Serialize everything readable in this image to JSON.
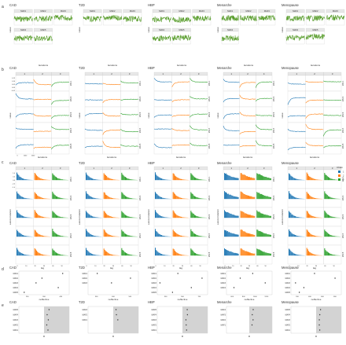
{
  "chart_data": {
    "type": "multi-panel",
    "panel_letters": [
      "a",
      "b",
      "c",
      "d",
      "e"
    ],
    "groups": [
      "CAD",
      "T2D",
      "HBP",
      "Menarche",
      "Menopause"
    ],
    "maf_bins": [
      "MAF1",
      "MAF2",
      "MAF3",
      "MAF4",
      "MAF5"
    ],
    "maf_count_per_group": [
      5,
      3,
      5,
      4,
      5
    ],
    "chain_labels": [
      "1",
      "2",
      "3"
    ],
    "menarche_chain_labels": [
      "1",
      "2",
      "4"
    ],
    "row_a": {
      "type": "line",
      "xlabel": "iterations",
      "ylabel": "value",
      "series_color": "#5a9e2e",
      "note": "trace plots of sampled values per MAF bin"
    },
    "row_b": {
      "type": "line",
      "xlabel": "iterations",
      "ylabel": "value",
      "chain_colors": [
        "#1f77b4",
        "#ff7f0e",
        "#2ca02c"
      ],
      "facet_rows": 5,
      "cad_yticks": [
        "0.15",
        "0.10",
        "0.05",
        "0.00",
        "-0.05"
      ],
      "cad_xticks": [
        "0",
        "1000",
        "2000"
      ]
    },
    "row_c": {
      "type": "bar",
      "xlabel": "lag",
      "ylabel": "autocorrelation",
      "chain_colors": [
        "#1f77b4",
        "#ff7f0e",
        "#2ca02c"
      ],
      "facet_rows": 5,
      "yticks": [
        "1.0",
        "0.5",
        "0.0",
        "-0.5",
        "-1.0"
      ],
      "xticks": [
        "0",
        "10",
        "20",
        "30",
        "40",
        "50"
      ],
      "legend_title": "Chain"
    },
    "row_d": {
      "type": "scatter",
      "xlabel": "neffective",
      "point_color": "#333333",
      "points": {
        "CAD": [
          440,
          300,
          260,
          410,
          180
        ],
        "T2D": [
          290,
          500,
          380
        ],
        "HBP": [
          350,
          620,
          150,
          500,
          290
        ],
        "Menarche": [
          900,
          700,
          1100,
          600
        ],
        "Menopause": [
          550,
          820,
          300,
          410,
          350
        ]
      },
      "xticks": {
        "CAD": [
          "200",
          "300",
          "400"
        ],
        "T2D": [
          "300",
          "400",
          "500"
        ],
        "HBP": [
          "300",
          "500",
          "700"
        ],
        "Menarche": [
          "600",
          "800",
          "1000",
          "1200"
        ],
        "Menopause": [
          "200",
          "400",
          "600",
          "800"
        ]
      }
    },
    "row_e": {
      "type": "scatter",
      "xlabel": "R",
      "shaded_band_color": "#d3d3d3",
      "point_color": "#333333"
    }
  }
}
